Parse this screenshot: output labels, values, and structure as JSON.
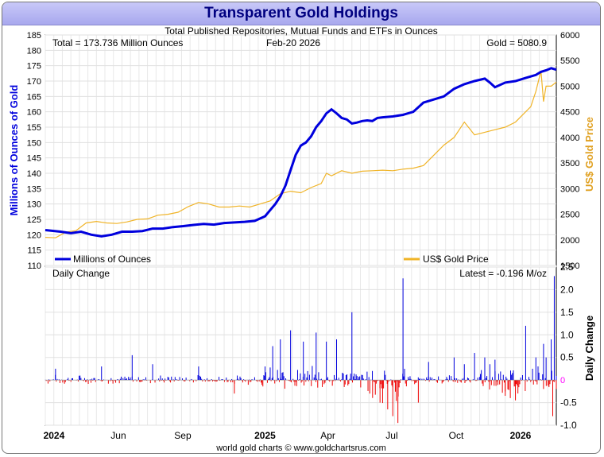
{
  "title": "Transparent Gold Holdings",
  "footer": "world gold charts © www.goldchartsrus.com",
  "chart_data": [
    {
      "type": "line",
      "subtitle": "Total Published Repositories, Mutual Funds and ETFs in Ounces",
      "annotations": {
        "total": "Total = 173.736 Million Ounces",
        "date": "Feb-20  2026",
        "gold": "Gold = 5080.9"
      },
      "ylabel": "Millions of Ounces of Gold",
      "ylabel_right": "US$ Gold Price",
      "ylim": [
        110,
        185
      ],
      "yticks": [
        110,
        115,
        120,
        125,
        130,
        135,
        140,
        145,
        150,
        155,
        160,
        165,
        170,
        175,
        180,
        185
      ],
      "ylim_right": [
        1500,
        6000
      ],
      "yticks_right": [
        1500,
        2000,
        2500,
        3000,
        3500,
        4000,
        4500,
        5000,
        5500,
        6000
      ],
      "xticks": [
        "2024",
        "Jun",
        "Sep",
        "2025",
        "Apr",
        "Jul",
        "Oct",
        "2026"
      ],
      "grid": true,
      "legend_placement": "bottom",
      "colors": {
        "holdings": "#0000dd",
        "gold_price": "#f0b428"
      },
      "series": [
        {
          "name": "Millions of Ounces",
          "axis": "left",
          "x": [
            0,
            0.03,
            0.05,
            0.07,
            0.09,
            0.11,
            0.13,
            0.15,
            0.17,
            0.19,
            0.21,
            0.23,
            0.25,
            0.27,
            0.29,
            0.31,
            0.33,
            0.35,
            0.37,
            0.39,
            0.41,
            0.43,
            0.44,
            0.45,
            0.46,
            0.47,
            0.48,
            0.49,
            0.5,
            0.51,
            0.52,
            0.53,
            0.54,
            0.55,
            0.56,
            0.57,
            0.58,
            0.59,
            0.6,
            0.61,
            0.62,
            0.63,
            0.64,
            0.65,
            0.66,
            0.68,
            0.7,
            0.72,
            0.74,
            0.76,
            0.78,
            0.8,
            0.82,
            0.84,
            0.86,
            0.87,
            0.88,
            0.9,
            0.92,
            0.94,
            0.96,
            0.97,
            0.98,
            0.99,
            1.0
          ],
          "values": [
            121.5,
            121.0,
            120.5,
            121.0,
            120.0,
            119.5,
            120.0,
            121.0,
            121.0,
            121.2,
            122.0,
            122.0,
            122.5,
            122.8,
            123.2,
            123.5,
            123.3,
            123.8,
            124.0,
            124.2,
            124.5,
            126.0,
            128.0,
            130.0,
            132.5,
            136.0,
            141.0,
            146.0,
            149.0,
            150.0,
            152.0,
            155.0,
            157.0,
            159.5,
            160.8,
            159.5,
            158.0,
            157.5,
            156.2,
            156.5,
            157.0,
            157.2,
            157.0,
            158.0,
            158.2,
            158.5,
            159.0,
            160.0,
            163.0,
            164.0,
            165.0,
            167.5,
            169.0,
            170.0,
            170.8,
            169.5,
            168.0,
            169.5,
            170.0,
            171.0,
            172.0,
            173.0,
            173.5,
            174.2,
            173.7
          ]
        },
        {
          "name": "US$ Gold Price",
          "axis": "right",
          "x": [
            0,
            0.02,
            0.04,
            0.06,
            0.08,
            0.1,
            0.12,
            0.14,
            0.16,
            0.18,
            0.2,
            0.22,
            0.24,
            0.26,
            0.28,
            0.3,
            0.32,
            0.34,
            0.36,
            0.38,
            0.4,
            0.42,
            0.44,
            0.46,
            0.48,
            0.5,
            0.52,
            0.54,
            0.55,
            0.56,
            0.58,
            0.6,
            0.62,
            0.64,
            0.66,
            0.68,
            0.7,
            0.72,
            0.74,
            0.76,
            0.78,
            0.8,
            0.82,
            0.84,
            0.86,
            0.88,
            0.9,
            0.92,
            0.94,
            0.95,
            0.96,
            0.97,
            0.975,
            0.98,
            0.99,
            1.0
          ],
          "values": [
            2050,
            2040,
            2150,
            2180,
            2330,
            2360,
            2330,
            2320,
            2350,
            2400,
            2410,
            2480,
            2500,
            2540,
            2650,
            2730,
            2700,
            2640,
            2640,
            2660,
            2640,
            2700,
            2760,
            2900,
            2950,
            2920,
            3020,
            3100,
            3300,
            3250,
            3350,
            3300,
            3340,
            3350,
            3360,
            3350,
            3380,
            3400,
            3450,
            3650,
            3850,
            4000,
            4300,
            4050,
            4100,
            4150,
            4200,
            4300,
            4500,
            4600,
            4900,
            5300,
            4700,
            5000,
            5000,
            5080
          ]
        }
      ]
    },
    {
      "type": "bar",
      "title": "Daily Change",
      "annotation_latest": "Latest = -0.196 M/oz",
      "ylabel": "Daily Change",
      "ylim": [
        -1.0,
        2.5
      ],
      "yticks": [
        -1.0,
        -0.5,
        0,
        0.5,
        1.0,
        1.5,
        2.0,
        2.5
      ],
      "zero_label": "0",
      "colors": {
        "positive": "#0000dd",
        "negative": "#ee0000",
        "zero_label": "#ff00ff"
      },
      "spikes": [
        {
          "x": 0.02,
          "v": 0.25
        },
        {
          "x": 0.11,
          "v": 0.3
        },
        {
          "x": 0.17,
          "v": 0.55
        },
        {
          "x": 0.21,
          "v": 0.35
        },
        {
          "x": 0.3,
          "v": 0.3
        },
        {
          "x": 0.37,
          "v": -0.3
        },
        {
          "x": 0.43,
          "v": 0.3
        },
        {
          "x": 0.445,
          "v": 0.75
        },
        {
          "x": 0.46,
          "v": 0.9
        },
        {
          "x": 0.48,
          "v": 1.1
        },
        {
          "x": 0.505,
          "v": 0.85
        },
        {
          "x": 0.53,
          "v": 1.05
        },
        {
          "x": 0.55,
          "v": 0.85
        },
        {
          "x": 0.57,
          "v": 0.9
        },
        {
          "x": 0.6,
          "v": 1.5
        },
        {
          "x": 0.635,
          "v": -0.3
        },
        {
          "x": 0.64,
          "v": 0.2
        },
        {
          "x": 0.655,
          "v": -0.5
        },
        {
          "x": 0.67,
          "v": -0.65
        },
        {
          "x": 0.68,
          "v": -0.8
        },
        {
          "x": 0.69,
          "v": -0.95
        },
        {
          "x": 0.7,
          "v": 2.25
        },
        {
          "x": 0.73,
          "v": -0.5
        },
        {
          "x": 0.75,
          "v": 0.4
        },
        {
          "x": 0.8,
          "v": 0.5
        },
        {
          "x": 0.82,
          "v": 0.35
        },
        {
          "x": 0.84,
          "v": 0.6
        },
        {
          "x": 0.86,
          "v": 0.5
        },
        {
          "x": 0.87,
          "v": 0.35
        },
        {
          "x": 0.88,
          "v": 0.45
        },
        {
          "x": 0.9,
          "v": -0.35
        },
        {
          "x": 0.91,
          "v": -0.4
        },
        {
          "x": 0.92,
          "v": -0.45
        },
        {
          "x": 0.94,
          "v": 1.2
        },
        {
          "x": 0.96,
          "v": 0.5
        },
        {
          "x": 0.975,
          "v": 0.8
        },
        {
          "x": 0.98,
          "v": 0.5
        },
        {
          "x": 0.99,
          "v": 0.9
        },
        {
          "x": 0.993,
          "v": -0.8
        },
        {
          "x": 0.996,
          "v": 2.3
        },
        {
          "x": 1.0,
          "v": -0.2
        }
      ]
    }
  ]
}
